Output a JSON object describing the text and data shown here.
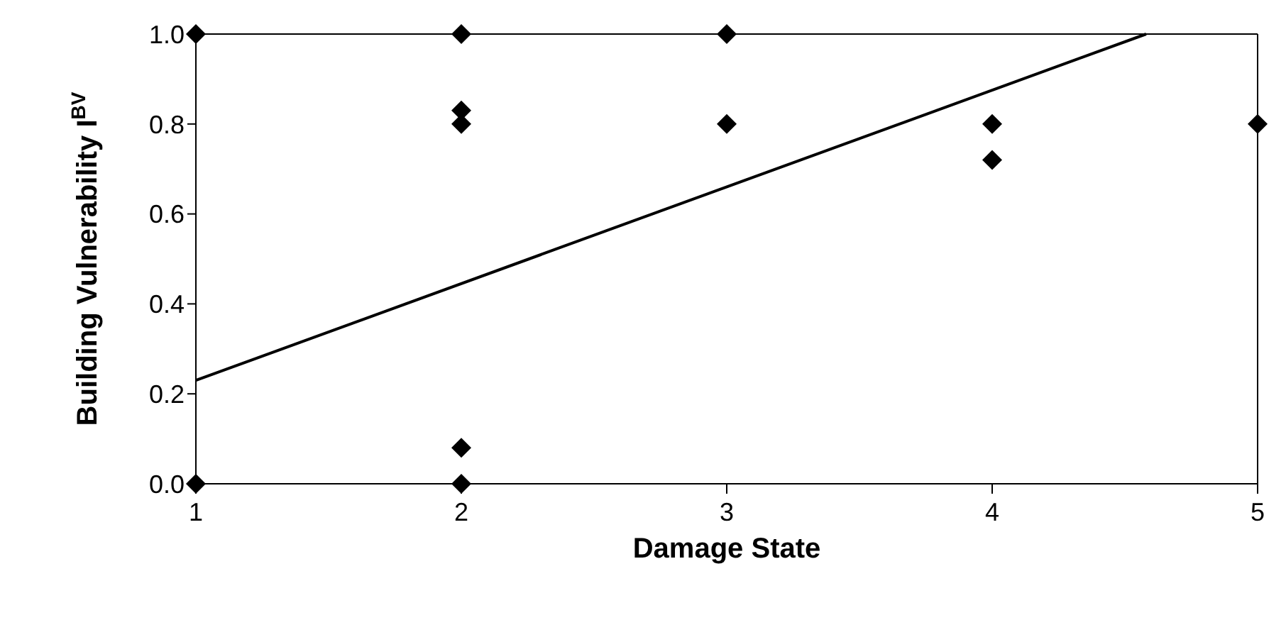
{
  "chart_data": {
    "type": "scatter",
    "xlabel": "Damage State",
    "ylabel": "Building Vulnerability I$^{BV}$",
    "x": [
      1,
      1,
      2,
      2,
      2,
      2,
      2,
      3,
      3,
      4,
      4,
      5
    ],
    "series": [
      {
        "color": "#000000",
        "marker": "diamond",
        "values": [
          1,
          0,
          1,
          0.83,
          0.8,
          0.08,
          0,
          1,
          0.8,
          0.8,
          0.72,
          0.8
        ]
      },
      {
        "type": "line",
        "color": "#000000",
        "x": [
          1,
          4.58
        ],
        "values": [
          0.23,
          1.0
        ],
        "line_style": "solid",
        "marker": "none"
      }
    ],
    "xlim": [
      1,
      5
    ],
    "xticks": [
      1,
      2,
      3,
      4,
      5
    ],
    "ylim": [
      0,
      1
    ],
    "yticks": [
      {
        "value": 0,
        "label": "0.0"
      },
      {
        "value": 0.2,
        "label": "0.2"
      },
      {
        "value": 0.4,
        "label": "0.4"
      },
      {
        "value": 0.6,
        "label": "0.6"
      },
      {
        "value": 0.8,
        "label": "0.8"
      },
      {
        "value": 1,
        "label": "1.0"
      }
    ],
    "grid": false
  }
}
